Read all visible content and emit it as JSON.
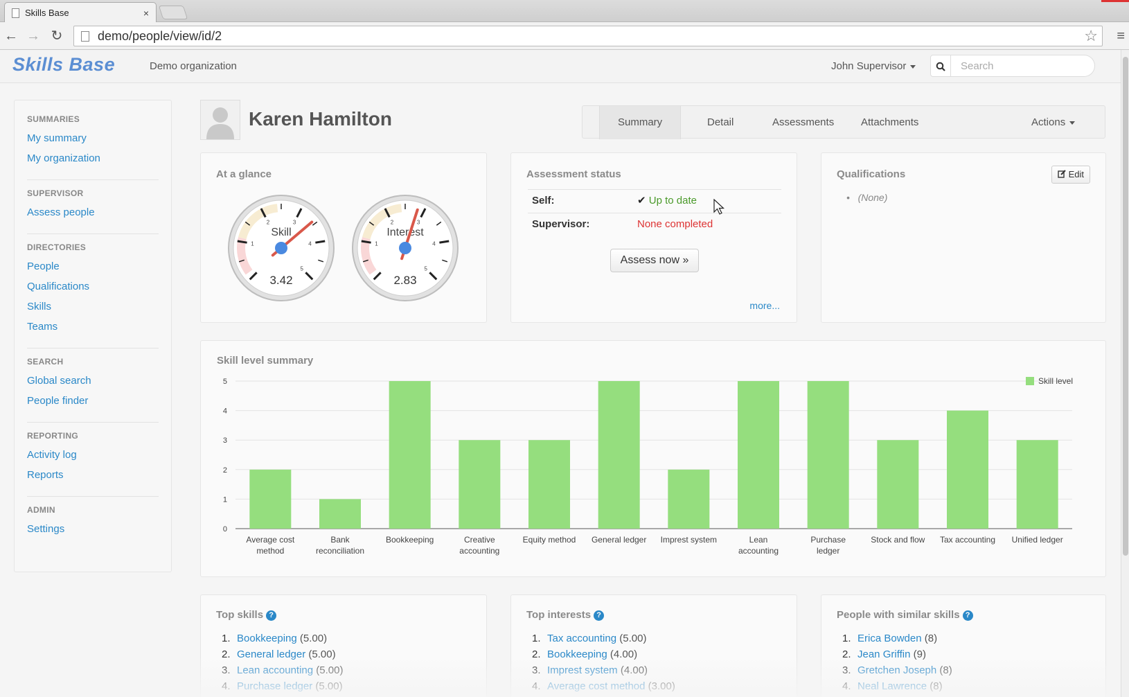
{
  "browser": {
    "tab_title": "Skills Base",
    "tab_close": "×",
    "url": "demo/people/view/id/2",
    "back_icon": "←",
    "forward_icon": "→",
    "reload_icon": "↻",
    "star_icon": "☆",
    "menu_icon": "≡"
  },
  "header": {
    "logo": "Skills Base",
    "org": "Demo organization",
    "user": "John Supervisor",
    "search_placeholder": "Search",
    "search_icon": "search-icon"
  },
  "sidebar": {
    "groups": [
      {
        "heading": "SUMMARIES",
        "items": [
          "My summary",
          "My organization"
        ]
      },
      {
        "heading": "SUPERVISOR",
        "items": [
          "Assess people"
        ]
      },
      {
        "heading": "DIRECTORIES",
        "items": [
          "People",
          "Qualifications",
          "Skills",
          "Teams"
        ]
      },
      {
        "heading": "SEARCH",
        "items": [
          "Global search",
          "People finder"
        ]
      },
      {
        "heading": "REPORTING",
        "items": [
          "Activity log",
          "Reports"
        ]
      },
      {
        "heading": "ADMIN",
        "items": [
          "Settings"
        ]
      }
    ]
  },
  "person": {
    "name": "Karen Hamilton"
  },
  "tabs": {
    "summary": "Summary",
    "detail": "Detail",
    "assessments": "Assessments",
    "attachments": "Attachments",
    "actions": "Actions"
  },
  "glance": {
    "title": "At a glance",
    "skill_label": "Skill",
    "skill_value": "3.42",
    "skill_level": 3.42,
    "interest_label": "Interest",
    "interest_value": "2.83",
    "interest_level": 2.83,
    "ticks": [
      "1",
      "2",
      "3",
      "4",
      "5"
    ]
  },
  "assessment": {
    "title": "Assessment status",
    "self_label": "Self:",
    "self_value": "Up to date",
    "self_check": "✔",
    "supervisor_label": "Supervisor:",
    "supervisor_value": "None completed",
    "assess_button": "Assess now »",
    "more": "more..."
  },
  "qualifications": {
    "title": "Qualifications",
    "edit": "Edit",
    "none": "(None)"
  },
  "chart_data": {
    "type": "bar",
    "title": "Skill level summary",
    "categories": [
      "Average cost method",
      "Bank reconciliation",
      "Bookkeeping",
      "Creative accounting",
      "Equity method",
      "General ledger",
      "Imprest system",
      "Lean accounting",
      "Purchase ledger",
      "Stock and flow",
      "Tax accounting",
      "Unified ledger"
    ],
    "category_lines": [
      [
        "Average cost",
        "method"
      ],
      [
        "Bank",
        "reconciliation"
      ],
      [
        "Bookkeeping"
      ],
      [
        "Creative",
        "accounting"
      ],
      [
        "Equity method"
      ],
      [
        "General ledger"
      ],
      [
        "Imprest system"
      ],
      [
        "Lean",
        "accounting"
      ],
      [
        "Purchase",
        "ledger"
      ],
      [
        "Stock and flow"
      ],
      [
        "Tax accounting"
      ],
      [
        "Unified ledger"
      ]
    ],
    "series": [
      {
        "name": "Skill level",
        "values": [
          2,
          1,
          5,
          3,
          3,
          5,
          2,
          5,
          5,
          3,
          4,
          3
        ]
      }
    ],
    "ylim": [
      0,
      5
    ],
    "yticks": [
      "0",
      "1",
      "2",
      "3",
      "4",
      "5"
    ],
    "grid": true,
    "legend": "top-right",
    "color": "#95de7e"
  },
  "top_skills": {
    "title": "Top skills",
    "items": [
      {
        "n": "1.",
        "name": "Bookkeeping",
        "val": "(5.00)"
      },
      {
        "n": "2.",
        "name": "General ledger",
        "val": "(5.00)"
      },
      {
        "n": "3.",
        "name": "Lean accounting",
        "val": "(5.00)"
      },
      {
        "n": "4.",
        "name": "Purchase ledger",
        "val": "(5.00)"
      }
    ]
  },
  "top_interests": {
    "title": "Top interests",
    "items": [
      {
        "n": "1.",
        "name": "Tax accounting",
        "val": "(5.00)"
      },
      {
        "n": "2.",
        "name": "Bookkeeping",
        "val": "(4.00)"
      },
      {
        "n": "3.",
        "name": "Imprest system",
        "val": "(4.00)"
      },
      {
        "n": "4.",
        "name": "Average cost method",
        "val": "(3.00)"
      }
    ]
  },
  "similar_people": {
    "title": "People with similar skills",
    "items": [
      {
        "n": "1.",
        "name": "Erica Bowden",
        "val": "(8)"
      },
      {
        "n": "2.",
        "name": "Jean Griffin",
        "val": "(9)"
      },
      {
        "n": "3.",
        "name": "Gretchen Joseph",
        "val": "(8)"
      },
      {
        "n": "4.",
        "name": "Neal Lawrence",
        "val": "(8)"
      }
    ]
  },
  "colors": {
    "link": "#2a88c8",
    "ok": "#4a9a2a",
    "bad": "#dd3333",
    "bar": "#95de7e"
  }
}
